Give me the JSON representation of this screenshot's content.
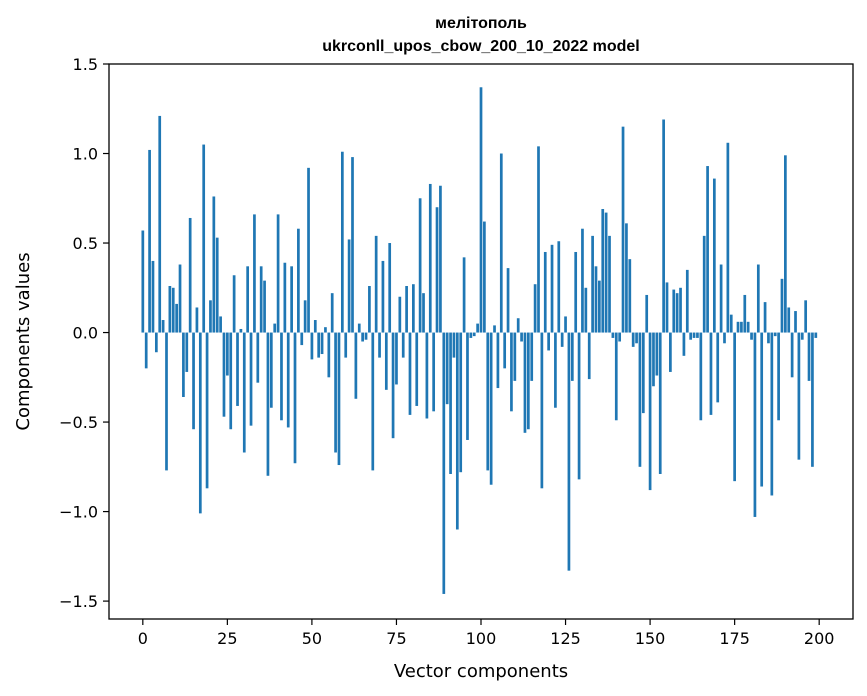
{
  "chart_data": {
    "type": "bar",
    "title": "мелітополь",
    "subtitle": "ukrconll_upos_cbow_200_10_2022 model",
    "xlabel": "Vector components",
    "ylabel": "Components values",
    "xlim": [
      -10,
      210
    ],
    "ylim": [
      -1.6,
      1.5
    ],
    "xticks": [
      0,
      25,
      50,
      75,
      100,
      125,
      150,
      175,
      200
    ],
    "xtick_labels": [
      "0",
      "25",
      "50",
      "75",
      "100",
      "125",
      "150",
      "175",
      "200"
    ],
    "yticks": [
      -1.5,
      -1.0,
      -0.5,
      0.0,
      0.5,
      1.0,
      1.5
    ],
    "ytick_labels": [
      "−1.5",
      "−1.0",
      "−0.5",
      "0.0",
      "0.5",
      "1.0",
      "1.5"
    ],
    "bar_color": "#1f77b4",
    "grid": false,
    "x": [
      0,
      1,
      2,
      3,
      4,
      5,
      6,
      7,
      8,
      9,
      10,
      11,
      12,
      13,
      14,
      15,
      16,
      17,
      18,
      19,
      20,
      21,
      22,
      23,
      24,
      25,
      26,
      27,
      28,
      29,
      30,
      31,
      32,
      33,
      34,
      35,
      36,
      37,
      38,
      39,
      40,
      41,
      42,
      43,
      44,
      45,
      46,
      47,
      48,
      49,
      50,
      51,
      52,
      53,
      54,
      55,
      56,
      57,
      58,
      59,
      60,
      61,
      62,
      63,
      64,
      65,
      66,
      67,
      68,
      69,
      70,
      71,
      72,
      73,
      74,
      75,
      76,
      77,
      78,
      79,
      80,
      81,
      82,
      83,
      84,
      85,
      86,
      87,
      88,
      89,
      90,
      91,
      92,
      93,
      94,
      95,
      96,
      97,
      98,
      99,
      100,
      101,
      102,
      103,
      104,
      105,
      106,
      107,
      108,
      109,
      110,
      111,
      112,
      113,
      114,
      115,
      116,
      117,
      118,
      119,
      120,
      121,
      122,
      123,
      124,
      125,
      126,
      127,
      128,
      129,
      130,
      131,
      132,
      133,
      134,
      135,
      136,
      137,
      138,
      139,
      140,
      141,
      142,
      143,
      144,
      145,
      146,
      147,
      148,
      149,
      150,
      151,
      152,
      153,
      154,
      155,
      156,
      157,
      158,
      159,
      160,
      161,
      162,
      163,
      164,
      165,
      166,
      167,
      168,
      169,
      170,
      171,
      172,
      173,
      174,
      175,
      176,
      177,
      178,
      179,
      180,
      181,
      182,
      183,
      184,
      185,
      186,
      187,
      188,
      189,
      190,
      191,
      192,
      193,
      194,
      195,
      196,
      197,
      198,
      199
    ],
    "values": [
      0.57,
      -0.2,
      1.02,
      0.4,
      -0.11,
      1.21,
      0.07,
      -0.77,
      0.26,
      0.25,
      0.16,
      0.38,
      -0.36,
      -0.22,
      0.64,
      -0.54,
      0.14,
      -1.01,
      1.05,
      -0.87,
      0.18,
      0.76,
      0.53,
      0.09,
      -0.47,
      -0.24,
      -0.54,
      0.32,
      -0.41,
      0.02,
      -0.67,
      0.37,
      -0.52,
      0.66,
      -0.28,
      0.37,
      0.29,
      -0.8,
      -0.42,
      0.05,
      0.66,
      -0.49,
      0.39,
      -0.53,
      0.37,
      -0.73,
      0.58,
      -0.07,
      0.18,
      0.92,
      -0.15,
      0.07,
      -0.14,
      -0.12,
      0.03,
      -0.25,
      0.22,
      -0.67,
      -0.74,
      1.01,
      -0.14,
      0.52,
      0.98,
      -0.37,
      0.05,
      -0.05,
      -0.04,
      0.26,
      -0.77,
      0.54,
      -0.14,
      0.4,
      -0.32,
      0.5,
      -0.59,
      -0.29,
      0.2,
      -0.14,
      0.26,
      -0.46,
      0.27,
      -0.41,
      0.75,
      0.22,
      -0.48,
      0.83,
      -0.44,
      0.7,
      0.82,
      -1.46,
      -0.4,
      -0.79,
      -0.14,
      -1.1,
      -0.78,
      0.42,
      -0.6,
      -0.03,
      -0.02,
      0.05,
      1.37,
      0.62,
      -0.77,
      -0.85,
      0.04,
      -0.31,
      1.0,
      -0.2,
      0.36,
      -0.44,
      -0.27,
      0.08,
      -0.05,
      -0.56,
      -0.54,
      -0.27,
      0.27,
      1.04,
      -0.87,
      0.45,
      -0.1,
      0.49,
      -0.42,
      0.51,
      -0.08,
      0.09,
      -1.33,
      -0.27,
      0.45,
      -0.82,
      0.58,
      0.25,
      -0.26,
      0.54,
      0.37,
      0.29,
      0.69,
      0.67,
      0.54,
      -0.03,
      -0.49,
      -0.05,
      1.15,
      0.61,
      0.41,
      -0.08,
      -0.06,
      -0.75,
      -0.45,
      0.21,
      -0.88,
      -0.3,
      -0.24,
      -0.79,
      1.19,
      0.28,
      -0.22,
      0.24,
      0.22,
      0.25,
      -0.13,
      0.35,
      -0.04,
      -0.03,
      -0.03,
      -0.49,
      0.54,
      0.93,
      -0.46,
      0.86,
      -0.39,
      0.38,
      -0.06,
      1.06,
      0.1,
      -0.83,
      0.06,
      0.06,
      0.21,
      0.06,
      -0.04,
      -1.03,
      0.38,
      -0.86,
      0.17,
      -0.06,
      -0.91,
      -0.02,
      -0.49,
      0.3,
      0.99,
      0.14,
      -0.25,
      0.12,
      -0.71,
      -0.04,
      0.18,
      -0.27,
      -0.75,
      -0.03
    ]
  }
}
